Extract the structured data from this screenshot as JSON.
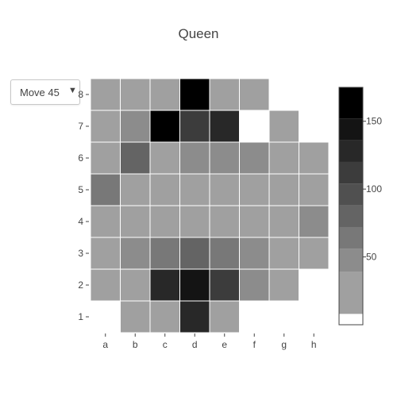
{
  "title": "Queen",
  "dropdown": {
    "selected": "Move 45",
    "arrow": "▼"
  },
  "chart_data": {
    "type": "heatmap",
    "title": "Queen",
    "x_categories": [
      "a",
      "b",
      "c",
      "d",
      "e",
      "f",
      "g",
      "h"
    ],
    "y_categories": [
      "1",
      "2",
      "3",
      "4",
      "5",
      "6",
      "7",
      "8"
    ],
    "z": [
      [
        null,
        35,
        35,
        125,
        35,
        null,
        null,
        null
      ],
      [
        35,
        35,
        125,
        145,
        110,
        55,
        35,
        null
      ],
      [
        35,
        55,
        60,
        85,
        70,
        55,
        35,
        35
      ],
      [
        35,
        35,
        35,
        35,
        35,
        35,
        35,
        55
      ],
      [
        70,
        35,
        35,
        35,
        35,
        35,
        35,
        35
      ],
      [
        35,
        75,
        35,
        55,
        55,
        55,
        35,
        35
      ],
      [
        35,
        55,
        175,
        110,
        125,
        null,
        35,
        null
      ],
      [
        35,
        35,
        35,
        175,
        35,
        35,
        null,
        null
      ]
    ],
    "zlim": [
      0,
      175
    ],
    "colorbar": {
      "tick_labels": [
        "50",
        "100",
        "150"
      ],
      "tick_values": [
        50,
        100,
        150
      ],
      "levels": [
        {
          "from": 0,
          "to": 8,
          "color": "#ffffff"
        },
        {
          "from": 8,
          "to": 39,
          "color": "#a0a0a0"
        },
        {
          "from": 39,
          "to": 56,
          "color": "#8c8c8c"
        },
        {
          "from": 56,
          "to": 72,
          "color": "#787878"
        },
        {
          "from": 72,
          "to": 88,
          "color": "#646464"
        },
        {
          "from": 88,
          "to": 104,
          "color": "#505050"
        },
        {
          "from": 104,
          "to": 120,
          "color": "#3c3c3c"
        },
        {
          "from": 120,
          "to": 136,
          "color": "#282828"
        },
        {
          "from": 136,
          "to": 152,
          "color": "#141414"
        },
        {
          "from": 152,
          "to": 175,
          "color": "#000000"
        }
      ]
    },
    "grid": false
  }
}
